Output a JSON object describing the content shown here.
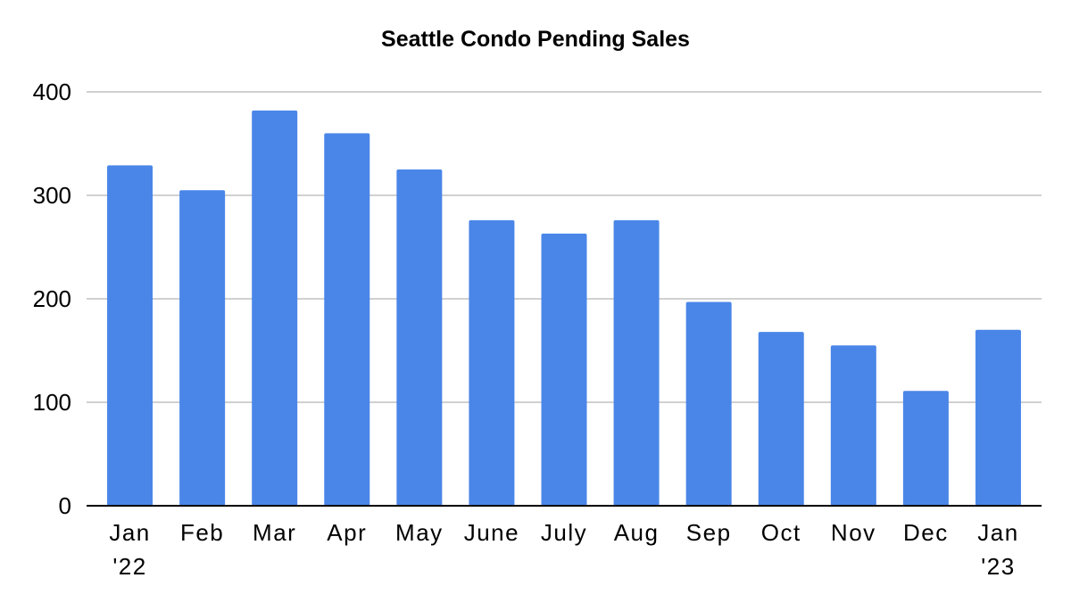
{
  "chart_data": {
    "type": "bar",
    "title": "Seattle Condo Pending Sales",
    "categories": [
      [
        "Jan",
        "'22"
      ],
      [
        "Feb"
      ],
      [
        "Mar"
      ],
      [
        "Apr"
      ],
      [
        "May"
      ],
      [
        "June"
      ],
      [
        "July"
      ],
      [
        "Aug"
      ],
      [
        "Sep"
      ],
      [
        "Oct"
      ],
      [
        "Nov"
      ],
      [
        "Dec"
      ],
      [
        "Jan",
        "'23"
      ]
    ],
    "values": [
      329,
      305,
      382,
      360,
      325,
      276,
      263,
      276,
      197,
      168,
      155,
      111,
      170
    ],
    "ylim": [
      0,
      400
    ],
    "yticks": [
      0,
      100,
      200,
      300,
      400
    ],
    "xlabel": "",
    "ylabel": "",
    "grid": true,
    "legend": "none",
    "colors": {
      "bar": "#4a86e8",
      "grid": "#d0d0d0",
      "axis": "#000000"
    }
  }
}
